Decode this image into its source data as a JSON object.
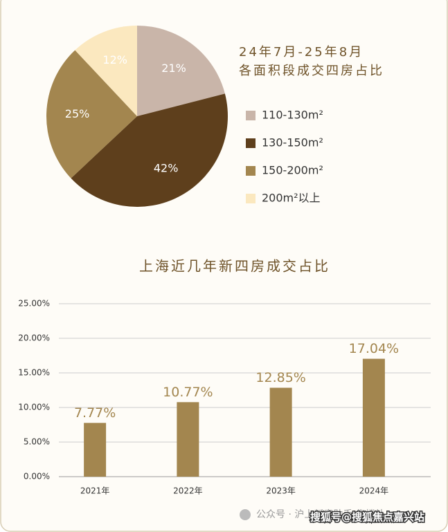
{
  "chart_data": [
    {
      "type": "pie",
      "title": [
        "24年7月-25年8月",
        "各面积段成交四房占比"
      ],
      "categories": [
        "110-130m²",
        "130-150m²",
        "150-200m²",
        "200m²以上"
      ],
      "values": [
        21,
        42,
        25,
        12
      ],
      "value_labels": [
        "21%",
        "42%",
        "25%",
        "12%"
      ],
      "colors": [
        "#c9b5a9",
        "#5e3f1c",
        "#a3864f",
        "#fbe8bf"
      ]
    },
    {
      "type": "bar",
      "title": "上海近几年新四房成交占比",
      "categories": [
        "2021年",
        "2022年",
        "2023年",
        "2024年"
      ],
      "values": [
        7.77,
        10.77,
        12.85,
        17.04
      ],
      "value_labels": [
        "7.77%",
        "10.77%",
        "12.85%",
        "17.04%"
      ],
      "color": "#a3864f",
      "ylim": [
        0,
        25
      ],
      "yticks": [
        {
          "value": 0,
          "label": "0.00%"
        },
        {
          "value": 5,
          "label": "5.00%"
        },
        {
          "value": 10,
          "label": "10.00%"
        },
        {
          "value": 15,
          "label": "15.00%"
        },
        {
          "value": 20,
          "label": "20.00%"
        },
        {
          "value": 25,
          "label": "25.00%"
        }
      ],
      "grid": true
    }
  ],
  "footer": "公众号 · 沪上新房助手 集楼处",
  "watermark": "搜狐号@搜狐焦点嘉兴站"
}
